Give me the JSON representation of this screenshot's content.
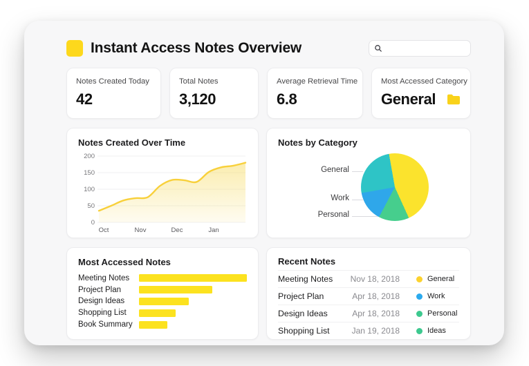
{
  "colors": {
    "accent_yellow": "#FDD81C",
    "panel_bg": "#F7F7F8",
    "card_bg": "#FFFFFF"
  },
  "header": {
    "title": "Instant Access Notes Overview",
    "search": {
      "placeholder": "",
      "value": ""
    },
    "icons": [
      "app-square-icon",
      "search-icon"
    ]
  },
  "stats": [
    {
      "label": "Notes Created Today",
      "value": "42"
    },
    {
      "label": "Total Notes",
      "value": "3,120"
    },
    {
      "label": "Average Retrieval Time",
      "value": "6.8"
    },
    {
      "label": "Most Accessed Category",
      "value": "General",
      "icon": "folder-icon",
      "icon_color": "#F9D21A"
    }
  ],
  "chart_data": [
    {
      "type": "line",
      "title": "Notes Created Over Time",
      "x": [
        0,
        1,
        2,
        3,
        4,
        5,
        6,
        7,
        8,
        9,
        10,
        11,
        12
      ],
      "values": [
        35,
        50,
        66,
        73,
        76,
        110,
        128,
        127,
        122,
        152,
        166,
        171,
        180
      ],
      "x_tick_labels": [
        "Oct",
        "Nov",
        "Dec",
        "Jan"
      ],
      "x_tick_indices": [
        0,
        3,
        6,
        9
      ],
      "yticks": [
        0,
        50,
        100,
        150,
        200
      ],
      "ylim": [
        0,
        200
      ],
      "grid": true,
      "legend": "none",
      "line_color": "#F8D03A",
      "area_fill_color": "#F7DE6E"
    },
    {
      "type": "pie",
      "title": "Notes by Category",
      "start_angle_deg": -10,
      "slices": [
        {
          "label": "",
          "value": 46,
          "color": "#FBE32D"
        },
        {
          "label": "Personal",
          "value": 14.5,
          "color": "#46CE8D"
        },
        {
          "label": "Work",
          "value": 14.5,
          "color": "#2FA7EA"
        },
        {
          "label": "General",
          "value": 25,
          "color": "#2EC4C6"
        }
      ],
      "label_side": "left",
      "labels": [
        {
          "text": "General",
          "top": 62,
          "line_w": 16
        },
        {
          "text": "Work",
          "top": 103,
          "line_w": 17
        },
        {
          "text": "Personal",
          "top": 127,
          "line_w": 37
        }
      ]
    },
    {
      "type": "bar",
      "title": "Most Accessed Notes",
      "orientation": "horizontal",
      "categories": [
        "Meeting Notes",
        "Project Plan",
        "Design Ideas",
        "Shopping List",
        "Book Summary"
      ],
      "values": [
        100,
        68,
        46,
        34,
        26
      ],
      "xlim": [
        0,
        100
      ],
      "bar_color": "#FCE21F",
      "xlabel": "",
      "ylabel": ""
    },
    {
      "type": "table",
      "title": "Recent Notes",
      "columns": [
        "name",
        "date",
        "category"
      ],
      "rows": [
        {
          "name": "Meeting Notes",
          "date": "Nov 18, 2018",
          "category": "General",
          "dot_color": "#FCD22E"
        },
        {
          "name": "Project Plan",
          "date": "Apr 18, 2018",
          "category": "Work",
          "dot_color": "#2BAAEE"
        },
        {
          "name": "Design Ideas",
          "date": "Apr 18, 2018",
          "category": "Personal",
          "dot_color": "#3DC98F"
        },
        {
          "name": "Shopping List",
          "date": "Jan 19, 2018",
          "category": "Ideas",
          "dot_color": "#3DC98F"
        }
      ]
    }
  ]
}
